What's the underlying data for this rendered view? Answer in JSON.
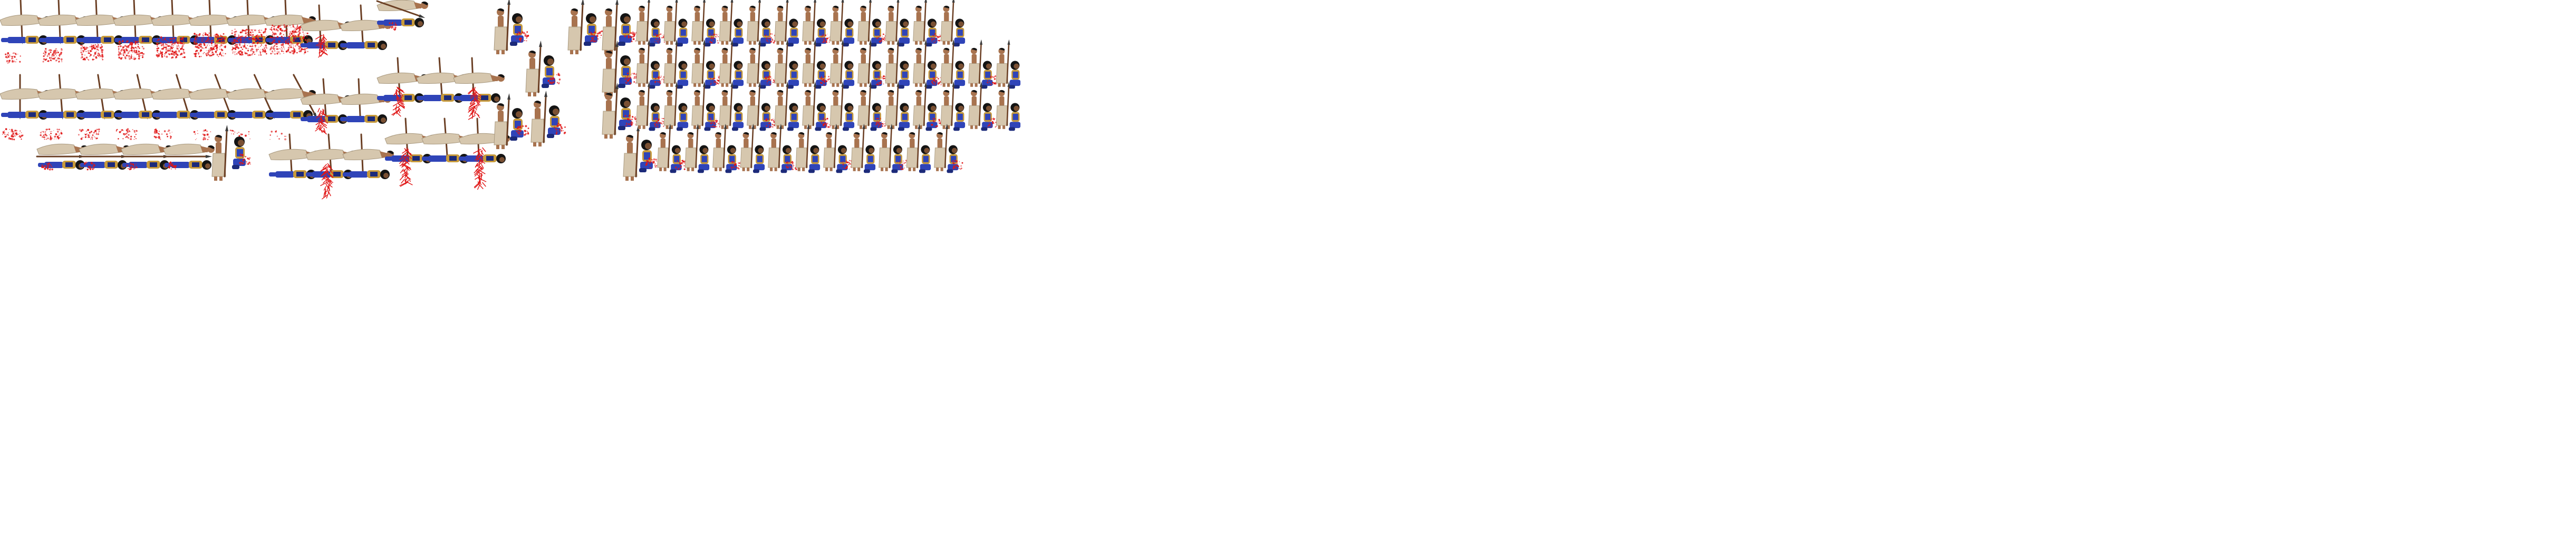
{
  "sheet": {
    "kind": "sprite-sheet",
    "background": "#ffffff",
    "palette": {
      "cloth": "#d6c7ae",
      "cloth_dark": "#a8987e",
      "skin": "#a8734f",
      "skin_dark": "#7a5033",
      "hair": "#141414",
      "armor_blue": "#2f44b8",
      "armor_dark": "#1c2a7a",
      "armor_gold": "#c79a3b",
      "blood": "#e01616",
      "spear_shaft": "#6b3f24",
      "spear_tip": "#3d3d3d"
    },
    "frames": [
      {
        "row": 1,
        "pose": "overkill-stab",
        "count": 8,
        "blood_pool_growing": true
      },
      {
        "row": 1,
        "pose": "spear-stuck-in-ground",
        "count": 2
      },
      {
        "row": 1,
        "pose": "spear-fall",
        "count": 1
      },
      {
        "row": 1,
        "pose": "lying-stab",
        "count": 2
      },
      {
        "row": 1,
        "pose": "standing-stab",
        "count": 1
      },
      {
        "row": 1,
        "pose": "lying-impale",
        "count": 3
      },
      {
        "row": 1,
        "pose": "kneel-finish",
        "count": 11
      },
      {
        "row": 2,
        "pose": "spear-pull",
        "count": 8
      },
      {
        "row": 2,
        "pose": "lying-pinned",
        "count": 7
      },
      {
        "row": 2,
        "pose": "standing-stab",
        "count": 2
      },
      {
        "row": 2,
        "pose": "kneel-finish",
        "count": 14
      },
      {
        "row": 3,
        "pose": "push-spear-horizontal",
        "count": 4
      },
      {
        "row": 3,
        "pose": "standing-stab",
        "count": 1
      },
      {
        "row": 3,
        "pose": "lying-impale",
        "count": 3
      },
      {
        "row": 3,
        "pose": "lying-blood-burst",
        "count": 3
      },
      {
        "row": 3,
        "pose": "standing-stab",
        "count": 3
      },
      {
        "row": 3,
        "pose": "kneel-finish",
        "count": 11
      },
      {
        "row": 4,
        "pose": "horizontal-spear-push",
        "count": 3
      },
      {
        "row": 4,
        "pose": "standing-final",
        "count": 1
      },
      {
        "row": 4,
        "pose": "kneel-finish",
        "count": 7
      }
    ]
  }
}
